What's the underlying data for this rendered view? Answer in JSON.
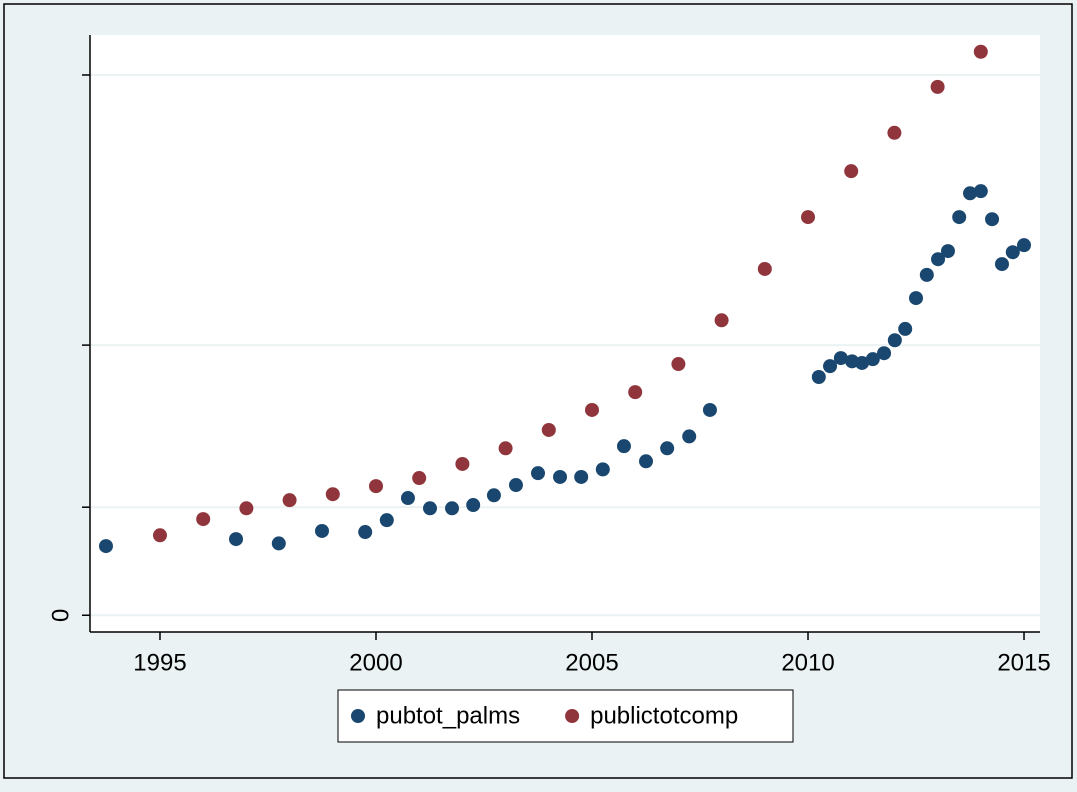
{
  "chart_data": {
    "type": "scatter",
    "xlim": [
      1993.38,
      2015.37
    ],
    "xticks": [
      1995,
      2000,
      2005,
      2010,
      2015
    ],
    "ylim": [
      -3.1,
      107.4
    ],
    "yticks": [
      0,
      {
        "value": 20,
        "label": null
      },
      {
        "value": 50,
        "label": null
      },
      {
        "value": 100,
        "label": null
      }
    ],
    "grid": true,
    "legend": "bottom",
    "series": [
      {
        "name": "pubtot_palms",
        "color": "#1a476f",
        "x": [
          1993.75,
          1996.76,
          1997.75,
          1998.75,
          1999.75,
          2000.25,
          2000.74,
          2001.25,
          2001.76,
          2002.25,
          2002.73,
          2003.24,
          2003.75,
          2004.26,
          2004.75,
          2005.25,
          2005.74,
          2006.25,
          2006.74,
          2007.25,
          2007.73,
          2010.25,
          2010.51,
          2010.76,
          2011.02,
          2011.25,
          2011.5,
          2011.76,
          2012.01,
          2012.25,
          2012.5,
          2012.75,
          2013.01,
          2013.24,
          2013.5,
          2013.75,
          2014.0,
          2014.26,
          2014.49,
          2014.74,
          2015.0
        ],
        "values": [
          12.8,
          14.1,
          13.3,
          15.6,
          15.4,
          17.6,
          21.7,
          19.8,
          19.8,
          20.4,
          22.2,
          24.1,
          26.3,
          25.6,
          25.6,
          27.0,
          31.3,
          28.5,
          30.9,
          33.1,
          38.0,
          44.1,
          46.1,
          47.6,
          47.0,
          46.7,
          47.4,
          48.5,
          50.9,
          53.0,
          58.7,
          63.0,
          65.9,
          67.4,
          73.7,
          78.1,
          78.5,
          73.3,
          65.0,
          67.2,
          68.5
        ]
      },
      {
        "name": "publictotcomp",
        "color": "#90353b",
        "x": [
          1995,
          1996,
          1997,
          1998,
          1999,
          2000,
          2001,
          2002,
          2003,
          2004,
          2005,
          2006,
          2007,
          2008,
          2009,
          2010,
          2011,
          2012,
          2013,
          2014
        ],
        "values": [
          14.8,
          17.8,
          19.8,
          21.3,
          22.4,
          23.9,
          25.4,
          28.0,
          30.9,
          34.3,
          38.0,
          41.3,
          46.5,
          54.6,
          64.1,
          73.7,
          82.2,
          89.3,
          97.8,
          104.3
        ]
      }
    ]
  }
}
